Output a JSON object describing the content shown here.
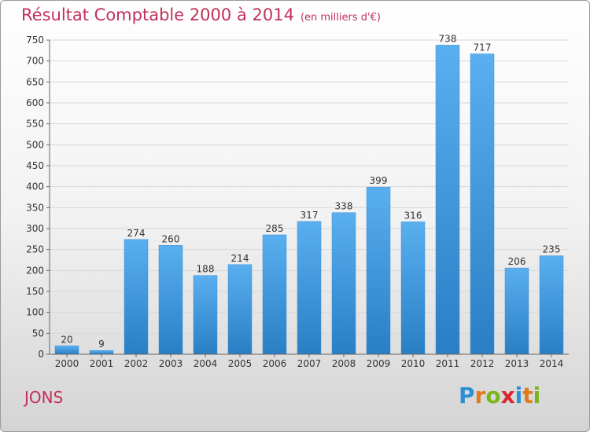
{
  "header": {
    "title": "Résultat Comptable 2000 à 2014",
    "subtitle": "(en milliers d'€)"
  },
  "footer": {
    "commune": "JONS",
    "logo_letters": [
      "P",
      "r",
      "o",
      "x",
      "i",
      "t",
      "i"
    ],
    "logo_colors": [
      "#2b8fd6",
      "#e07a1a",
      "#7ab51d",
      "#d9262c",
      "#2b8fd6",
      "#e07a1a",
      "#7ab51d"
    ]
  },
  "chart_data": {
    "type": "bar",
    "title": "Résultat Comptable 2000 à 2014",
    "subtitle": "(en milliers d'€)",
    "categories": [
      "2000",
      "2001",
      "2002",
      "2003",
      "2004",
      "2005",
      "2006",
      "2007",
      "2008",
      "2009",
      "2010",
      "2011",
      "2012",
      "2013",
      "2014"
    ],
    "values": [
      20,
      9,
      274,
      260,
      188,
      214,
      285,
      317,
      338,
      399,
      316,
      738,
      717,
      206,
      235
    ],
    "ylim": [
      0,
      750
    ],
    "yticks": [
      0,
      50,
      100,
      150,
      200,
      250,
      300,
      350,
      400,
      450,
      500,
      550,
      600,
      650,
      700,
      750
    ],
    "grid": true,
    "bar_color_top": "#5aaff0",
    "bar_color_bottom": "#2a7ec4",
    "grid_color": "#d8d8d8"
  }
}
